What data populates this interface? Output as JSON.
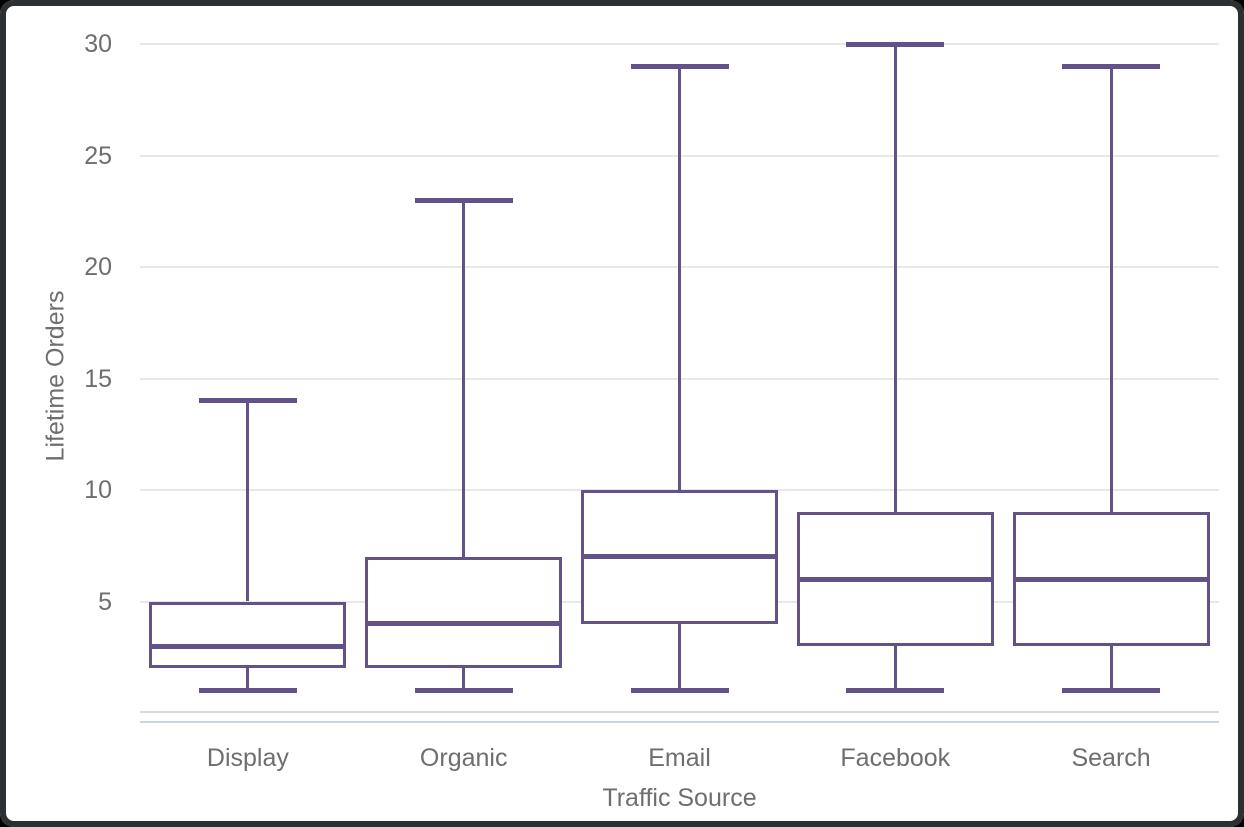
{
  "window": {
    "background": "#ffffff",
    "frame_color": "#2c3033"
  },
  "chart_data": {
    "type": "boxplot",
    "title": "",
    "xlabel": "Traffic Source",
    "ylabel": "Lifetime Orders",
    "categories": [
      "Display",
      "Organic",
      "Email",
      "Facebook",
      "Search"
    ],
    "series": [
      {
        "name": "Display",
        "min": 1,
        "q1": 2,
        "median": 3,
        "q3": 5,
        "max": 14
      },
      {
        "name": "Organic",
        "min": 1,
        "q1": 2,
        "median": 4,
        "q3": 7,
        "max": 23
      },
      {
        "name": "Email",
        "min": 1,
        "q1": 4,
        "median": 7,
        "q3": 10,
        "max": 29
      },
      {
        "name": "Facebook",
        "min": 1,
        "q1": 3,
        "median": 6,
        "q3": 9,
        "max": 30
      },
      {
        "name": "Search",
        "min": 1,
        "q1": 3,
        "median": 6,
        "q3": 9,
        "max": 29
      }
    ],
    "y_ticks": [
      5,
      10,
      15,
      20,
      25,
      30
    ],
    "ylim": [
      0,
      31
    ],
    "grid": true,
    "legend": false,
    "colors": {
      "box_stroke": "#63518a",
      "box_fill": "#ffffff",
      "gridline": "#e8e8e8",
      "axis_line": "#d9d9d9",
      "axis_accent_line": "#c9d4ea",
      "label_text": "#6e6e6e"
    }
  }
}
